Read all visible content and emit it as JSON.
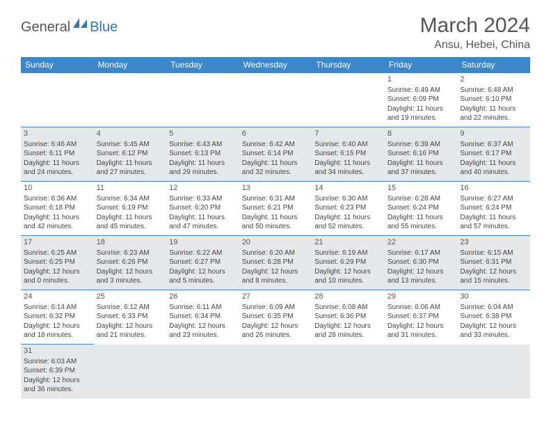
{
  "logo": {
    "part1": "General",
    "part2": "Blue"
  },
  "title": "March 2024",
  "location": "Ansu, Hebei, China",
  "colors": {
    "header_bg": "#3b87c8",
    "header_text": "#ffffff",
    "alt_row_bg": "#e7e8e9",
    "border": "#3b87c8",
    "text": "#444444",
    "title_text": "#555555"
  },
  "weekdays": [
    "Sunday",
    "Monday",
    "Tuesday",
    "Wednesday",
    "Thursday",
    "Friday",
    "Saturday"
  ],
  "days": [
    {
      "n": 1,
      "sr": "6:49 AM",
      "ss": "6:09 PM",
      "dl": "11 hours and 19 minutes."
    },
    {
      "n": 2,
      "sr": "6:48 AM",
      "ss": "6:10 PM",
      "dl": "11 hours and 22 minutes."
    },
    {
      "n": 3,
      "sr": "6:46 AM",
      "ss": "6:11 PM",
      "dl": "11 hours and 24 minutes."
    },
    {
      "n": 4,
      "sr": "6:45 AM",
      "ss": "6:12 PM",
      "dl": "11 hours and 27 minutes."
    },
    {
      "n": 5,
      "sr": "6:43 AM",
      "ss": "6:13 PM",
      "dl": "11 hours and 29 minutes."
    },
    {
      "n": 6,
      "sr": "6:42 AM",
      "ss": "6:14 PM",
      "dl": "11 hours and 32 minutes."
    },
    {
      "n": 7,
      "sr": "6:40 AM",
      "ss": "6:15 PM",
      "dl": "11 hours and 34 minutes."
    },
    {
      "n": 8,
      "sr": "6:39 AM",
      "ss": "6:16 PM",
      "dl": "11 hours and 37 minutes."
    },
    {
      "n": 9,
      "sr": "6:37 AM",
      "ss": "6:17 PM",
      "dl": "11 hours and 40 minutes."
    },
    {
      "n": 10,
      "sr": "6:36 AM",
      "ss": "6:18 PM",
      "dl": "11 hours and 42 minutes."
    },
    {
      "n": 11,
      "sr": "6:34 AM",
      "ss": "6:19 PM",
      "dl": "11 hours and 45 minutes."
    },
    {
      "n": 12,
      "sr": "6:33 AM",
      "ss": "6:20 PM",
      "dl": "11 hours and 47 minutes."
    },
    {
      "n": 13,
      "sr": "6:31 AM",
      "ss": "6:21 PM",
      "dl": "11 hours and 50 minutes."
    },
    {
      "n": 14,
      "sr": "6:30 AM",
      "ss": "6:23 PM",
      "dl": "11 hours and 52 minutes."
    },
    {
      "n": 15,
      "sr": "6:28 AM",
      "ss": "6:24 PM",
      "dl": "11 hours and 55 minutes."
    },
    {
      "n": 16,
      "sr": "6:27 AM",
      "ss": "6:24 PM",
      "dl": "11 hours and 57 minutes."
    },
    {
      "n": 17,
      "sr": "6:25 AM",
      "ss": "6:25 PM",
      "dl": "12 hours and 0 minutes."
    },
    {
      "n": 18,
      "sr": "6:23 AM",
      "ss": "6:26 PM",
      "dl": "12 hours and 3 minutes."
    },
    {
      "n": 19,
      "sr": "6:22 AM",
      "ss": "6:27 PM",
      "dl": "12 hours and 5 minutes."
    },
    {
      "n": 20,
      "sr": "6:20 AM",
      "ss": "6:28 PM",
      "dl": "12 hours and 8 minutes."
    },
    {
      "n": 21,
      "sr": "6:19 AM",
      "ss": "6:29 PM",
      "dl": "12 hours and 10 minutes."
    },
    {
      "n": 22,
      "sr": "6:17 AM",
      "ss": "6:30 PM",
      "dl": "12 hours and 13 minutes."
    },
    {
      "n": 23,
      "sr": "6:15 AM",
      "ss": "6:31 PM",
      "dl": "12 hours and 15 minutes."
    },
    {
      "n": 24,
      "sr": "6:14 AM",
      "ss": "6:32 PM",
      "dl": "12 hours and 18 minutes."
    },
    {
      "n": 25,
      "sr": "6:12 AM",
      "ss": "6:33 PM",
      "dl": "12 hours and 21 minutes."
    },
    {
      "n": 26,
      "sr": "6:11 AM",
      "ss": "6:34 PM",
      "dl": "12 hours and 23 minutes."
    },
    {
      "n": 27,
      "sr": "6:09 AM",
      "ss": "6:35 PM",
      "dl": "12 hours and 26 minutes."
    },
    {
      "n": 28,
      "sr": "6:08 AM",
      "ss": "6:36 PM",
      "dl": "12 hours and 28 minutes."
    },
    {
      "n": 29,
      "sr": "6:06 AM",
      "ss": "6:37 PM",
      "dl": "12 hours and 31 minutes."
    },
    {
      "n": 30,
      "sr": "6:04 AM",
      "ss": "6:38 PM",
      "dl": "12 hours and 33 minutes."
    },
    {
      "n": 31,
      "sr": "6:03 AM",
      "ss": "6:39 PM",
      "dl": "12 hours and 36 minutes."
    }
  ],
  "labels": {
    "sunrise": "Sunrise: ",
    "sunset": "Sunset: ",
    "daylight": "Daylight: "
  },
  "first_weekday_index": 5
}
